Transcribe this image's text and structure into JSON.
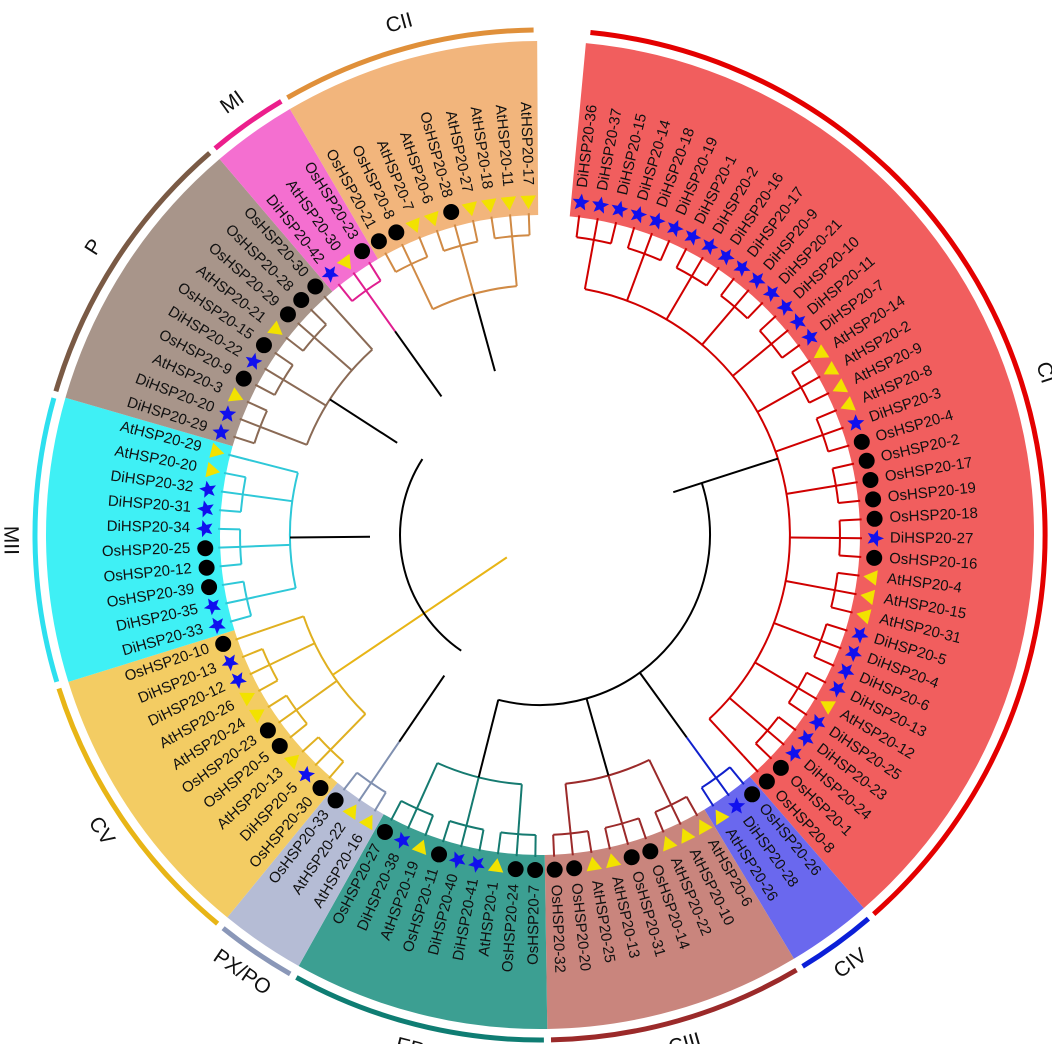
{
  "clades": [
    {
      "id": "MII",
      "label": "MII",
      "arc": "#2de0ef",
      "bg": "#3ff0f5",
      "branch": "#2ec8d8"
    },
    {
      "id": "P",
      "label": "P",
      "arc": "#7a5a45",
      "bg": "#a8958a",
      "branch": "#8a6a55"
    },
    {
      "id": "MI",
      "label": "MI",
      "arc": "#ec1e8c",
      "bg": "#f46fd0",
      "branch": "#e01e90"
    },
    {
      "id": "CII",
      "label": "CII",
      "arc": "#e0903a",
      "bg": "#f2b57c",
      "branch": "#d08a45"
    },
    {
      "id": "CI",
      "label": "CI",
      "arc": "#e40000",
      "bg": "#f15e5e",
      "branch": "#d00000"
    },
    {
      "id": "CIV",
      "label": "CIV",
      "arc": "#0b1fd8",
      "bg": "#6a68ee",
      "branch": "#1020cc"
    },
    {
      "id": "CIII",
      "label": "CIII",
      "arc": "#9b2a2a",
      "bg": "#c9857d",
      "branch": "#9b2a2a"
    },
    {
      "id": "ER",
      "label": "ER",
      "arc": "#0f7d73",
      "bg": "#3c9f92",
      "branch": "#157a70"
    },
    {
      "id": "PX/PO",
      "label": "PX/PO",
      "arc": "#8a97b8",
      "bg": "#b5bcd5",
      "branch": "#8090b0"
    },
    {
      "id": "CV",
      "label": "CV",
      "arc": "#e8b516",
      "bg": "#f3cc63",
      "branch": "#e0b020"
    }
  ],
  "markers": {
    "Di": {
      "shape": "star",
      "color": "#1010ee"
    },
    "Os": {
      "shape": "circle",
      "color": "#000000"
    },
    "At": {
      "shape": "triangle",
      "color": "#f2e200"
    }
  },
  "leaves": [
    {
      "name": "DiHSP20-36",
      "clade": "CI"
    },
    {
      "name": "DiHSP20-37",
      "clade": "CI"
    },
    {
      "name": "DiHSP20-15",
      "clade": "CI"
    },
    {
      "name": "DiHSP20-14",
      "clade": "CI"
    },
    {
      "name": "DiHSP20-18",
      "clade": "CI"
    },
    {
      "name": "DiHSP20-19",
      "clade": "CI"
    },
    {
      "name": "DiHSP20-1",
      "clade": "CI"
    },
    {
      "name": "DiHSP20-2",
      "clade": "CI"
    },
    {
      "name": "DiHSP20-16",
      "clade": "CI"
    },
    {
      "name": "DiHSP20-17",
      "clade": "CI"
    },
    {
      "name": "DiHSP20-9",
      "clade": "CI"
    },
    {
      "name": "DiHSP20-21",
      "clade": "CI"
    },
    {
      "name": "DiHSP20-10",
      "clade": "CI"
    },
    {
      "name": "DiHSP20-11",
      "clade": "CI"
    },
    {
      "name": "DiHSP20-7",
      "clade": "CI"
    },
    {
      "name": "AtHSP20-14",
      "clade": "CI"
    },
    {
      "name": "AtHSP20-2",
      "clade": "CI"
    },
    {
      "name": "AtHSP20-9",
      "clade": "CI"
    },
    {
      "name": "AtHSP20-8",
      "clade": "CI"
    },
    {
      "name": "DiHSP20-3",
      "clade": "CI"
    },
    {
      "name": "OsHSP20-4",
      "clade": "CI"
    },
    {
      "name": "OsHSP20-2",
      "clade": "CI"
    },
    {
      "name": "OsHSP20-17",
      "clade": "CI"
    },
    {
      "name": "OsHSP20-19",
      "clade": "CI"
    },
    {
      "name": "OsHSP20-18",
      "clade": "CI"
    },
    {
      "name": "DiHSP20-27",
      "clade": "CI"
    },
    {
      "name": "OsHSP20-16",
      "clade": "CI"
    },
    {
      "name": "AtHSP20-4",
      "clade": "CI"
    },
    {
      "name": "AtHSP20-15",
      "clade": "CI"
    },
    {
      "name": "AtHSP20-31",
      "clade": "CI"
    },
    {
      "name": "DiHSP20-5",
      "clade": "CI"
    },
    {
      "name": "DiHSP20-4",
      "clade": "CI"
    },
    {
      "name": "DiHSP20-6",
      "clade": "CI"
    },
    {
      "name": "DiHSP20-13",
      "clade": "CI"
    },
    {
      "name": "AtHSP20-12",
      "clade": "CI"
    },
    {
      "name": "DiHSP20-25",
      "clade": "CI"
    },
    {
      "name": "DiHSP20-23",
      "clade": "CI"
    },
    {
      "name": "DiHSP20-24",
      "clade": "CI"
    },
    {
      "name": "OsHSP20-1",
      "clade": "CI"
    },
    {
      "name": "OsHSP20-8",
      "clade": "CI"
    },
    {
      "name": "OsHSP20-26",
      "clade": "CIV"
    },
    {
      "name": "DiHSP20-28",
      "clade": "CIV"
    },
    {
      "name": "AtHSP20-26",
      "clade": "CIV"
    },
    {
      "name": "AtHSP20-6",
      "clade": "CIII"
    },
    {
      "name": "AtHSP20-10",
      "clade": "CIII"
    },
    {
      "name": "AtHSP20-22",
      "clade": "CIII"
    },
    {
      "name": "OsHSP20-14",
      "clade": "CIII"
    },
    {
      "name": "OsHSP20-31",
      "clade": "CIII"
    },
    {
      "name": "AtHSP20-13",
      "clade": "CIII"
    },
    {
      "name": "AtHSP20-25",
      "clade": "CIII"
    },
    {
      "name": "OsHSP20-20",
      "clade": "CIII"
    },
    {
      "name": "OsHSP20-32",
      "clade": "CIII"
    },
    {
      "name": "OsHSP20-7",
      "clade": "ER"
    },
    {
      "name": "OsHSP20-24",
      "clade": "ER"
    },
    {
      "name": "AtHSP20-1",
      "clade": "ER"
    },
    {
      "name": "DiHSP20-41",
      "clade": "ER"
    },
    {
      "name": "DiHSP20-40",
      "clade": "ER"
    },
    {
      "name": "OsHSP20-11",
      "clade": "ER"
    },
    {
      "name": "AtHSP20-19",
      "clade": "ER"
    },
    {
      "name": "DiHSP20-38",
      "clade": "ER"
    },
    {
      "name": "OsHSP20-27",
      "clade": "ER"
    },
    {
      "name": "AtHSP20-16",
      "clade": "PX/PO"
    },
    {
      "name": "AtHSP20-22",
      "clade": "PX/PO"
    },
    {
      "name": "OsHSP20-33",
      "clade": "PX/PO"
    },
    {
      "name": "OsHSP20-30",
      "clade": "CV"
    },
    {
      "name": "DiHSP20-5",
      "clade": "CV"
    },
    {
      "name": "AtHSP20-13",
      "clade": "CV"
    },
    {
      "name": "OsHSP20-5",
      "clade": "CV"
    },
    {
      "name": "OsHSP20-23",
      "clade": "CV"
    },
    {
      "name": "AtHSP20-24",
      "clade": "CV"
    },
    {
      "name": "AtHSP20-26",
      "clade": "CV"
    },
    {
      "name": "DiHSP20-12",
      "clade": "CV"
    },
    {
      "name": "DiHSP20-13",
      "clade": "CV"
    },
    {
      "name": "OsHSP20-10",
      "clade": "CV"
    },
    {
      "name": "DiHSP20-33",
      "clade": "MII"
    },
    {
      "name": "DiHSP20-35",
      "clade": "MII"
    },
    {
      "name": "OsHSP20-39",
      "clade": "MII"
    },
    {
      "name": "OsHSP20-12",
      "clade": "MII"
    },
    {
      "name": "OsHSP20-25",
      "clade": "MII"
    },
    {
      "name": "DiHSP20-34",
      "clade": "MII"
    },
    {
      "name": "DiHSP20-31",
      "clade": "MII"
    },
    {
      "name": "DiHSP20-32",
      "clade": "MII"
    },
    {
      "name": "AtHSP20-20",
      "clade": "MII"
    },
    {
      "name": "AtHSP20-29",
      "clade": "MII"
    },
    {
      "name": "DiHSP20-29",
      "clade": "P"
    },
    {
      "name": "DiHSP20-20",
      "clade": "P"
    },
    {
      "name": "AtHSP20-3",
      "clade": "P"
    },
    {
      "name": "OsHSP20-9",
      "clade": "P"
    },
    {
      "name": "DiHSP20-22",
      "clade": "P"
    },
    {
      "name": "OsHSP20-15",
      "clade": "P"
    },
    {
      "name": "AtHSP20-21",
      "clade": "P"
    },
    {
      "name": "OsHSP20-29",
      "clade": "P"
    },
    {
      "name": "OsHSP20-28",
      "clade": "P"
    },
    {
      "name": "OsHSP20-30",
      "clade": "P"
    },
    {
      "name": "DiHSP20-42",
      "clade": "MI"
    },
    {
      "name": "AtHSP20-30",
      "clade": "MI"
    },
    {
      "name": "OsHSP20-23",
      "clade": "MI"
    },
    {
      "name": "OsHSP20-21",
      "clade": "CII"
    },
    {
      "name": "OsHSP20-8",
      "clade": "CII"
    },
    {
      "name": "AtHSP20-7",
      "clade": "CII"
    },
    {
      "name": "AtHSP20-6",
      "clade": "CII"
    },
    {
      "name": "OsHSP20-28",
      "clade": "CII"
    },
    {
      "name": "AtHSP20-27",
      "clade": "CII"
    },
    {
      "name": "AtHSP20-18",
      "clade": "CII"
    },
    {
      "name": "AtHSP20-11",
      "clade": "CII"
    },
    {
      "name": "AtHSP20-17",
      "clade": "CII"
    }
  ]
}
